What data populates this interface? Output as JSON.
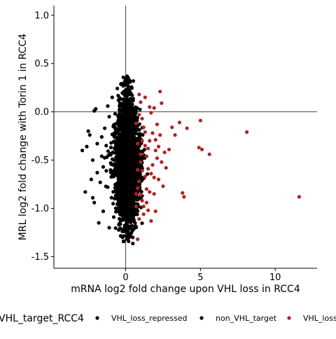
{
  "chart_data": {
    "type": "scatter",
    "xlabel": "mRNA log2 fold change upon VHL loss in RCC4",
    "ylabel": "MRL log2 fold change with Torin 1 in RCC4",
    "xlim": [
      -4.8,
      12.8
    ],
    "ylim": [
      -1.62,
      1.1
    ],
    "x_ticks": [
      0,
      5,
      10
    ],
    "y_ticks": [
      1.0,
      0.5,
      0.0,
      -0.5,
      -1.0,
      -1.5
    ],
    "x_tick_labels": [
      "0",
      "5",
      "10"
    ],
    "y_tick_labels": [
      "1.0",
      "0.5",
      "0.0",
      "-0.5",
      "-1.0",
      "-1.5"
    ],
    "reference_lines": {
      "x": 0,
      "y": 0
    },
    "grid": false,
    "legend": {
      "title": "VHL_target_RCC4",
      "position": "bottom",
      "entries": [
        {
          "label": "VHL_loss_repressed",
          "color": "#000000"
        },
        {
          "label": "non_VHL_target",
          "color": "#000000"
        },
        {
          "label": "VHL_loss_induced",
          "color": "#B22222"
        }
      ]
    },
    "series": [
      {
        "name": "VHL_loss_induced",
        "color": "#B22222",
        "points": [
          [
            8.1,
            -0.21
          ],
          [
            11.6,
            -0.88
          ],
          [
            5.6,
            -0.44
          ],
          [
            5.0,
            -0.09
          ],
          [
            5.1,
            -0.39
          ],
          [
            4.9,
            -0.37
          ],
          [
            4.1,
            -0.17
          ],
          [
            3.6,
            -0.11
          ],
          [
            3.8,
            -0.84
          ],
          [
            3.9,
            -0.88
          ],
          [
            2.3,
            0.21
          ],
          [
            2.4,
            0.09
          ],
          [
            1.9,
            0.04
          ],
          [
            3.1,
            -0.16
          ],
          [
            3.3,
            -0.24
          ],
          [
            2.9,
            -0.39
          ],
          [
            2.6,
            -0.42
          ],
          [
            2.7,
            -0.58
          ],
          [
            2.5,
            -0.77
          ],
          [
            2.2,
            -0.7
          ],
          [
            2.0,
            -1.03
          ],
          [
            1.7,
            -0.64
          ],
          [
            1.5,
            -0.38
          ],
          [
            1.3,
            -0.21
          ],
          [
            0.8,
            -1.32
          ],
          [
            1.4,
            -0.94
          ],
          [
            2.3,
            -0.24
          ],
          [
            2.2,
            -0.36
          ],
          [
            2.4,
            -0.52
          ],
          [
            1.8,
            -0.55
          ],
          [
            1.6,
            -0.3
          ],
          [
            1.9,
            -0.85
          ],
          [
            1.7,
            -1.13
          ],
          [
            1.2,
            -0.98
          ],
          [
            0.9,
            -1.11
          ],
          [
            1.1,
            -0.61
          ],
          [
            1.0,
            -0.44
          ],
          [
            1.3,
            0.15
          ],
          [
            1.0,
            0.1
          ],
          [
            0.9,
            0.18
          ],
          [
            1.6,
            0.05
          ],
          [
            2.1,
            -0.13
          ],
          [
            1.1,
            -0.3
          ],
          [
            1.2,
            -0.16
          ],
          [
            0.9,
            -0.72
          ],
          [
            0.8,
            -0.6
          ],
          [
            0.7,
            -0.85
          ],
          [
            1.4,
            -0.8
          ],
          [
            1.5,
            -1.02
          ],
          [
            1.1,
            -0.07
          ],
          [
            0.8,
            -0.33
          ],
          [
            1.0,
            -0.52
          ],
          [
            1.7,
            -0.01
          ],
          [
            2.1,
            -0.48
          ],
          [
            1.3,
            -0.67
          ],
          [
            0.7,
            -0.98
          ],
          [
            1.0,
            -0.86
          ],
          [
            1.5,
            -0.59
          ],
          [
            1.8,
            -0.22
          ],
          [
            0.9,
            -0.03
          ],
          [
            2.0,
            -0.4
          ],
          [
            1.9,
            -0.68
          ],
          [
            1.2,
            -1.06
          ],
          [
            0.8,
            -0.79
          ],
          [
            1.4,
            -0.46
          ],
          [
            0.7,
            -0.12
          ],
          [
            2.0,
            -0.29
          ],
          [
            1.6,
            -0.83
          ],
          [
            1.1,
            -0.92
          ],
          [
            1.3,
            -0.35
          ]
        ]
      },
      {
        "name": "VHL_loss_repressed",
        "color": "#000000",
        "points": [
          [
            -2.0,
            0.03
          ],
          [
            -2.1,
            0.01
          ],
          [
            -2.5,
            -0.2
          ],
          [
            -2.4,
            -0.24
          ],
          [
            -2.9,
            -0.4
          ],
          [
            -2.6,
            -0.36
          ],
          [
            -2.7,
            -0.83
          ],
          [
            -2.1,
            -0.94
          ],
          [
            -2.2,
            -0.89
          ],
          [
            -1.8,
            -1.15
          ],
          [
            -2.3,
            -0.7
          ],
          [
            -1.9,
            -0.63
          ],
          [
            -2.2,
            -0.5
          ],
          [
            -1.6,
            -0.46
          ],
          [
            -1.7,
            -0.73
          ],
          [
            -1.5,
            -1.03
          ],
          [
            -1.3,
            -0.35
          ],
          [
            -1.4,
            -0.17
          ],
          [
            -1.2,
            0.06
          ],
          [
            -1.1,
            -0.05
          ],
          [
            -0.9,
            0.15
          ],
          [
            -1.0,
            -0.53
          ],
          [
            -1.2,
            -0.78
          ],
          [
            -1.1,
            -1.2
          ],
          [
            -0.8,
            -1.09
          ],
          [
            -1.6,
            -0.26
          ],
          [
            -1.9,
            -0.33
          ],
          [
            -1.5,
            -0.57
          ]
        ]
      }
    ],
    "dense_cloud": {
      "name": "non_VHL_target",
      "color": "#000000",
      "x_center": 0.1,
      "x_spread": 0.45,
      "y_range": [
        -1.37,
        0.37
      ],
      "approx_points": 2500
    }
  }
}
